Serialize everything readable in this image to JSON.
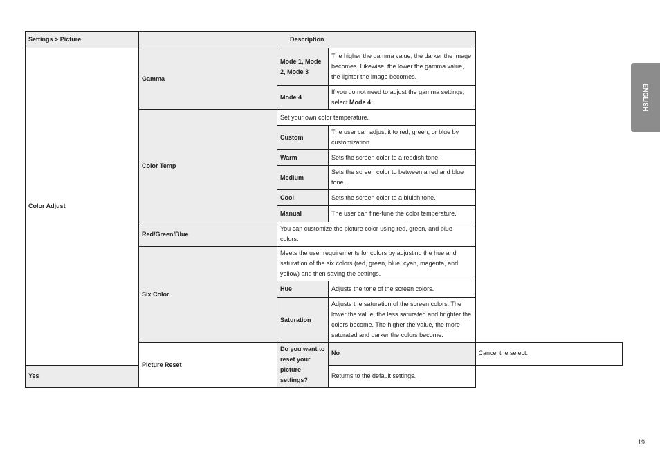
{
  "header": {
    "col1": "Settings > Picture",
    "col2": "Description"
  },
  "color_adjust": {
    "label": "Color Adjust",
    "gamma": {
      "label": "Gamma",
      "mode123": "Mode 1, Mode 2, Mode 3",
      "mode123_desc": "The higher the gamma value, the darker the image becomes. Likewise, the lower the gamma value, the lighter the image becomes.",
      "mode4": "Mode 4",
      "mode4_desc_pre": "If you do not need to adjust the gamma settings, select ",
      "mode4_desc_bold": "Mode 4",
      "mode4_desc_post": "."
    },
    "color_temp": {
      "label": "Color Temp",
      "intro": "Set your own color temperature.",
      "items": [
        {
          "label": "Custom",
          "desc": "The user can adjust it to red, green, or blue by customization."
        },
        {
          "label": "Warm",
          "desc": "Sets the screen color to a reddish tone."
        },
        {
          "label": "Medium",
          "desc": "Sets the screen color to between a red and blue tone."
        },
        {
          "label": "Cool",
          "desc": "Sets the screen color to a bluish tone."
        },
        {
          "label": "Manual",
          "desc": "The user can fine-tune the color temperature."
        }
      ]
    },
    "rgb": {
      "label": "Red/Green/Blue",
      "desc": "You can customize the picture color using red, green, and blue colors."
    },
    "six_color": {
      "label": "Six Color",
      "intro": "Meets the user requirements for colors by adjusting the hue and saturation of the six colors (red, green, blue, cyan, magenta, and yellow) and then saving the settings.",
      "items": [
        {
          "label": "Hue",
          "desc": "Adjusts the tone of the screen colors."
        },
        {
          "label": "Saturation",
          "desc": "Adjusts the saturation of the screen colors. The lower the value, the less saturated and brighter the colors become. The higher the value, the more saturated and darker the colors become."
        }
      ]
    }
  },
  "picture_reset": {
    "label": "Picture Reset",
    "question": "Do you want to reset your picture settings?",
    "items": [
      {
        "label": "No",
        "desc": "Cancel the select."
      },
      {
        "label": "Yes",
        "desc": "Returns to the default settings."
      }
    ]
  },
  "side_tab": "ENGLISH",
  "page_number": "19"
}
